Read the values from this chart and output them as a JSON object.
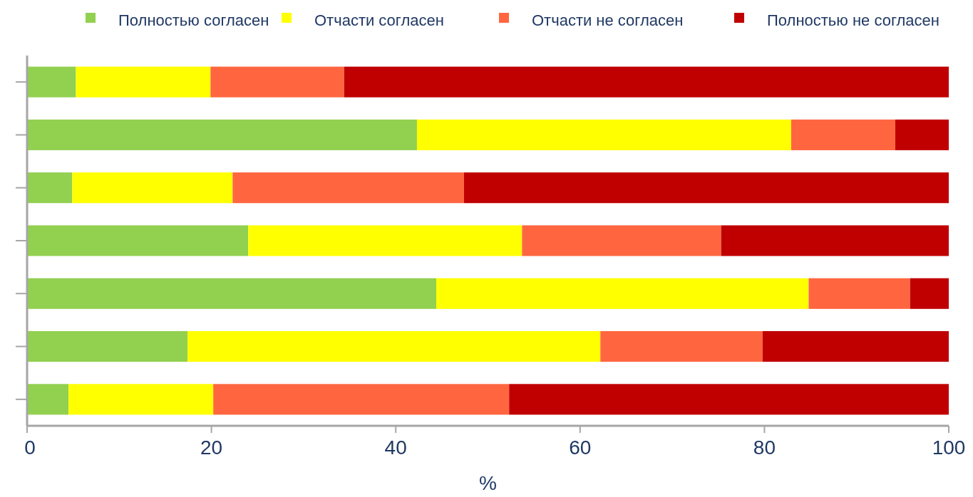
{
  "chart_data": {
    "type": "bar",
    "orientation": "horizontal",
    "stacked": true,
    "xlabel": "%",
    "categories": [
      null,
      null,
      null,
      null,
      null,
      null,
      null
    ],
    "series": [
      {
        "name": "Полностью согласен",
        "color": "#92d050",
        "values": [
          5.3,
          42.3,
          4.9,
          24.0,
          44.4,
          17.4,
          4.5
        ]
      },
      {
        "name": "Отчасти согласен",
        "color": "#ffff00",
        "values": [
          14.6,
          40.6,
          17.4,
          29.7,
          40.4,
          44.8,
          15.7
        ]
      },
      {
        "name": "Отчасти не согласен",
        "color": "#ff6640",
        "values": [
          14.5,
          11.3,
          25.1,
          21.6,
          11.0,
          17.6,
          32.1
        ]
      },
      {
        "name": "Полностью не согласен",
        "color": "#c00000",
        "values": [
          65.6,
          5.8,
          52.6,
          24.7,
          4.2,
          20.2,
          47.7
        ]
      }
    ],
    "xlim": [
      0,
      100
    ],
    "xticks": [
      0,
      20,
      40,
      60,
      80,
      100
    ],
    "legend": "top",
    "grid": false
  }
}
